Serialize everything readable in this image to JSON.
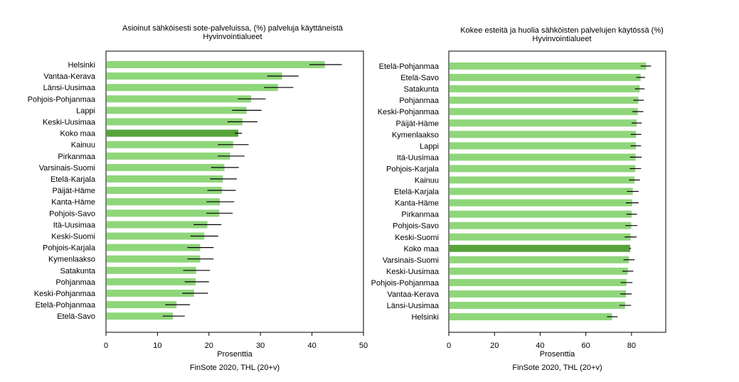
{
  "chart_data": [
    {
      "type": "bar",
      "orientation": "horizontal",
      "title": "Asioinut sähköisesti sote-palveluissa, (%) palveluja käyttäneistä",
      "subtitle": "Hyvinvointialueet",
      "xlabel": "Prosenttia",
      "source": "FinSote 2020, THL (20+v)",
      "xlim": [
        0,
        50
      ],
      "xticks": [
        0,
        10,
        20,
        30,
        40,
        50
      ],
      "colors": {
        "bar": "#8fd67a",
        "highlight": "#56a33a",
        "error": "#000000"
      },
      "highlight": "Koko maa",
      "categories": [
        "Helsinki",
        "Vantaa-Kerava",
        "Länsi-Uusimaa",
        "Pohjois-Pohjanmaa",
        "Lappi",
        "Keski-Uusimaa",
        "Koko maa",
        "Kainuu",
        "Pirkanmaa",
        "Varsinais-Suomi",
        "Etelä-Karjala",
        "Päijät-Häme",
        "Kanta-Häme",
        "Pohjois-Savo",
        "Itä-Uusimaa",
        "Keski-Suomi",
        "Pohjois-Karjala",
        "Kymenlaakso",
        "Satakunta",
        "Pohjanmaa",
        "Keski-Pohjanmaa",
        "Etelä-Pohjanmaa",
        "Etelä-Savo"
      ],
      "values": [
        42.5,
        34.2,
        33.4,
        28.2,
        27.3,
        26.5,
        25.7,
        24.7,
        24.1,
        23.0,
        22.7,
        22.5,
        22.1,
        22.0,
        19.7,
        19.1,
        18.3,
        18.3,
        17.5,
        17.4,
        17.1,
        13.7,
        13.0
      ],
      "lower": [
        39.5,
        31.3,
        30.7,
        25.6,
        24.5,
        23.6,
        25.0,
        21.7,
        21.7,
        20.4,
        20.2,
        19.7,
        19.5,
        19.5,
        17.0,
        16.4,
        15.8,
        15.8,
        15.0,
        15.3,
        14.8,
        11.5,
        11.0
      ],
      "upper": [
        45.8,
        37.4,
        36.4,
        31.0,
        30.2,
        29.4,
        26.4,
        27.7,
        26.9,
        25.8,
        25.4,
        25.2,
        24.9,
        24.6,
        22.4,
        21.8,
        20.9,
        20.9,
        20.2,
        20.0,
        19.8,
        16.3,
        15.3
      ]
    },
    {
      "type": "bar",
      "orientation": "horizontal",
      "title": "Kokee esteitä ja huolia sähköisten palvelujen käytössä (%)",
      "subtitle": "Hyvinvointialueet",
      "xlabel": "Prosenttia",
      "source": "FinSote 2020, THL (20+v)",
      "xlim": [
        0,
        95
      ],
      "xticks": [
        0,
        20,
        40,
        60,
        80
      ],
      "colors": {
        "bar": "#8fd67a",
        "highlight": "#56a33a",
        "error": "#000000"
      },
      "highlight": "Koko maa",
      "categories": [
        "Etelä-Pohjanmaa",
        "Etelä-Savo",
        "Satakunta",
        "Pohjanmaa",
        "Keski-Pohjanmaa",
        "Päijät-Häme",
        "Kymenlaakso",
        "Lappi",
        "Itä-Uusimaa",
        "Pohjois-Karjala",
        "Kainuu",
        "Etelä-Karjala",
        "Kanta-Häme",
        "Pirkanmaa",
        "Pohjois-Savo",
        "Keski-Suomi",
        "Koko maa",
        "Varsinais-Suomi",
        "Keski-Uusimaa",
        "Pohjois-Pohjanmaa",
        "Vantaa-Kerava",
        "Länsi-Uusimaa",
        "Helsinki"
      ],
      "values": [
        86.4,
        84.0,
        83.6,
        83.0,
        82.8,
        82.3,
        82.0,
        81.9,
        81.8,
        81.7,
        81.3,
        80.6,
        80.3,
        80.1,
        79.9,
        79.6,
        79.4,
        78.9,
        78.4,
        77.8,
        77.6,
        77.2,
        71.5
      ],
      "lower": [
        84.0,
        82.1,
        81.5,
        80.8,
        80.4,
        80.1,
        79.7,
        79.6,
        79.3,
        79.2,
        78.9,
        78.0,
        77.5,
        77.8,
        77.3,
        77.0,
        79.0,
        76.5,
        76.0,
        75.2,
        75.1,
        74.7,
        69.3
      ],
      "upper": [
        88.6,
        86.0,
        85.7,
        85.4,
        85.2,
        84.5,
        84.3,
        84.2,
        84.4,
        84.2,
        83.7,
        83.1,
        83.1,
        82.4,
        82.5,
        82.2,
        79.8,
        81.3,
        80.8,
        80.4,
        80.1,
        79.8,
        73.9
      ]
    }
  ]
}
